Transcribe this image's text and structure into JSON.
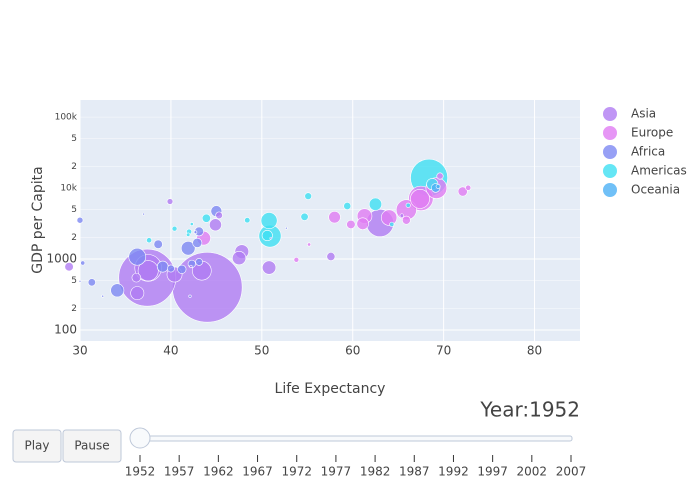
{
  "chart_data": {
    "type": "scatter",
    "x_label": "Life Expectancy",
    "y_label": "GDP per Capita",
    "xlim": [
      30,
      85
    ],
    "xticks": [
      30,
      40,
      50,
      60,
      70,
      80
    ],
    "ylim": [
      70,
      174000
    ],
    "log_y": true,
    "grid": true,
    "legend": "right",
    "yticks": [
      100,
      {
        "value": 200,
        "label": "2"
      },
      {
        "value": 500,
        "label": "5"
      },
      1000,
      {
        "value": 2000,
        "label": "2"
      },
      {
        "value": 5000,
        "label": "5"
      },
      {
        "value": 10000,
        "label": "10k"
      },
      {
        "value": 20000,
        "label": "2"
      },
      {
        "value": 50000,
        "label": "5"
      },
      {
        "value": 100000,
        "label": "100k"
      }
    ],
    "series": [
      {
        "name": "Asia",
        "color": "#b07cf2",
        "x": [
          28.8,
          37.5,
          44.0,
          37.4,
          37.5,
          63.0,
          43.4,
          47.8,
          44.9,
          45.3,
          39.9,
          50.8,
          40.4,
          47.5,
          36.3,
          36.2,
          65.4,
          57.6,
          42.2
        ],
        "y": [
          779,
          684,
          400,
          547,
          750,
          3217,
          685,
          1273,
          3035,
          4130,
          6460,
          758,
          605,
          1031,
          331,
          546,
          4087,
          1084,
          786
        ],
        "size": [
          8.4,
          46.9,
          556,
          372,
          82,
          86,
          41,
          22,
          17,
          5.4,
          4,
          21,
          26,
          20.9,
          20,
          9,
          1.6,
          7.9,
          0.8
        ]
      },
      {
        "name": "Europe",
        "color": "#e07cf2",
        "x": [
          69.2,
          67.5,
          67.4,
          65.9,
          64.0,
          61.3,
          43.6,
          69.6,
          72.7,
          72.1,
          59.8,
          65.9,
          55.2,
          61.1,
          58.0,
          53.8
        ],
        "y": [
          9980,
          7144,
          7030,
          4931,
          3834,
          4029,
          1969,
          14734,
          10095,
          8942,
          3068,
          3531,
          1601,
          3145,
          3888,
          974
        ],
        "size": [
          50,
          69,
          42,
          47,
          28,
          25,
          22,
          4.8,
          3.3,
          10,
          8.5,
          7.7,
          1.3,
          16,
          15.9,
          2.8
        ]
      },
      {
        "name": "Africa",
        "color": "#7d88f2",
        "x": [
          36.3,
          41.9,
          34.1,
          39.1,
          45.0,
          42.9,
          43.1,
          38.6,
          41.2,
          42.3,
          40.0,
          43.1,
          31.3,
          30.0,
          30.3,
          30.0,
          37.0,
          42.7,
          51.0,
          52.7,
          42.1,
          32.5
        ],
        "y": [
          1077,
          1419,
          362,
          781,
          4725,
          1688,
          2449,
          1615,
          717,
          854,
          735,
          911,
          469,
          485,
          880,
          3521,
          4293,
          2388,
          1968,
          2719,
          299,
          300
        ],
        "size": [
          33,
          22,
          20,
          14,
          14,
          9.9,
          9.3,
          8.5,
          8.3,
          6.5,
          5.8,
          5.6,
          6.4,
          0.28,
          2.1,
          4.2,
          0.4,
          1,
          0.5,
          0.26,
          0.75,
          0.58
        ]
      },
      {
        "name": "Americas",
        "color": "#3fe0f2",
        "x": [
          68.4,
          50.9,
          50.8,
          62.5,
          68.75,
          50.6,
          43.9,
          54.7,
          59.4,
          55.1,
          37.6,
          40.4,
          42.0,
          48.4,
          64.3,
          41.9,
          42.3,
          66.1
        ],
        "y": [
          13990,
          2109,
          3478,
          5911,
          11367,
          2144,
          3759,
          3940,
          5587,
          7690,
          1840,
          2677,
          2428,
          3522,
          3082,
          2195,
          3112,
          5717
        ],
        "size": [
          157.5,
          56.6,
          30,
          17.9,
          14.8,
          12.4,
          8,
          6.4,
          6,
          5.4,
          3.2,
          2.9,
          3.1,
          3.5,
          2.2,
          1.5,
          1.2,
          2.25
        ]
      },
      {
        "name": "Oceania",
        "color": "#4cb0f5",
        "x": [
          69.12,
          69.39
        ],
        "y": [
          10040,
          10557
        ],
        "size": [
          8.7,
          1.99
        ]
      }
    ]
  },
  "slider": {
    "label": "Year:1952",
    "steps": [
      "1952",
      "1957",
      "1962",
      "1967",
      "1972",
      "1977",
      "1982",
      "1987",
      "1992",
      "1997",
      "2002",
      "2007"
    ]
  },
  "buttons": [
    "Play",
    "Pause"
  ]
}
